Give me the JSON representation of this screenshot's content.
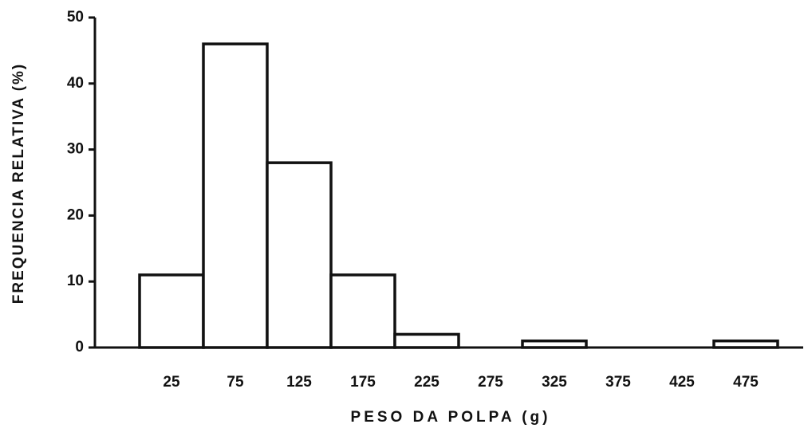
{
  "chart_data": {
    "type": "histogram",
    "ylabel": "FREQUENCIA RELATIVA (%)",
    "xlabel": "PESO DA POLPA (g)",
    "bins": [
      0,
      50,
      100,
      150,
      200,
      250,
      300,
      350,
      400,
      450,
      500
    ],
    "counts": [
      11,
      46,
      28,
      11,
      2,
      0,
      1,
      0,
      0,
      1
    ],
    "color": "#ffffff",
    "xlim": [
      -35,
      520
    ],
    "ylim": [
      0,
      50
    ],
    "xticks": [
      25,
      75,
      125,
      175,
      225,
      275,
      325,
      375,
      425,
      475
    ],
    "yticks": [
      0,
      10,
      20,
      30,
      40,
      50
    ]
  }
}
